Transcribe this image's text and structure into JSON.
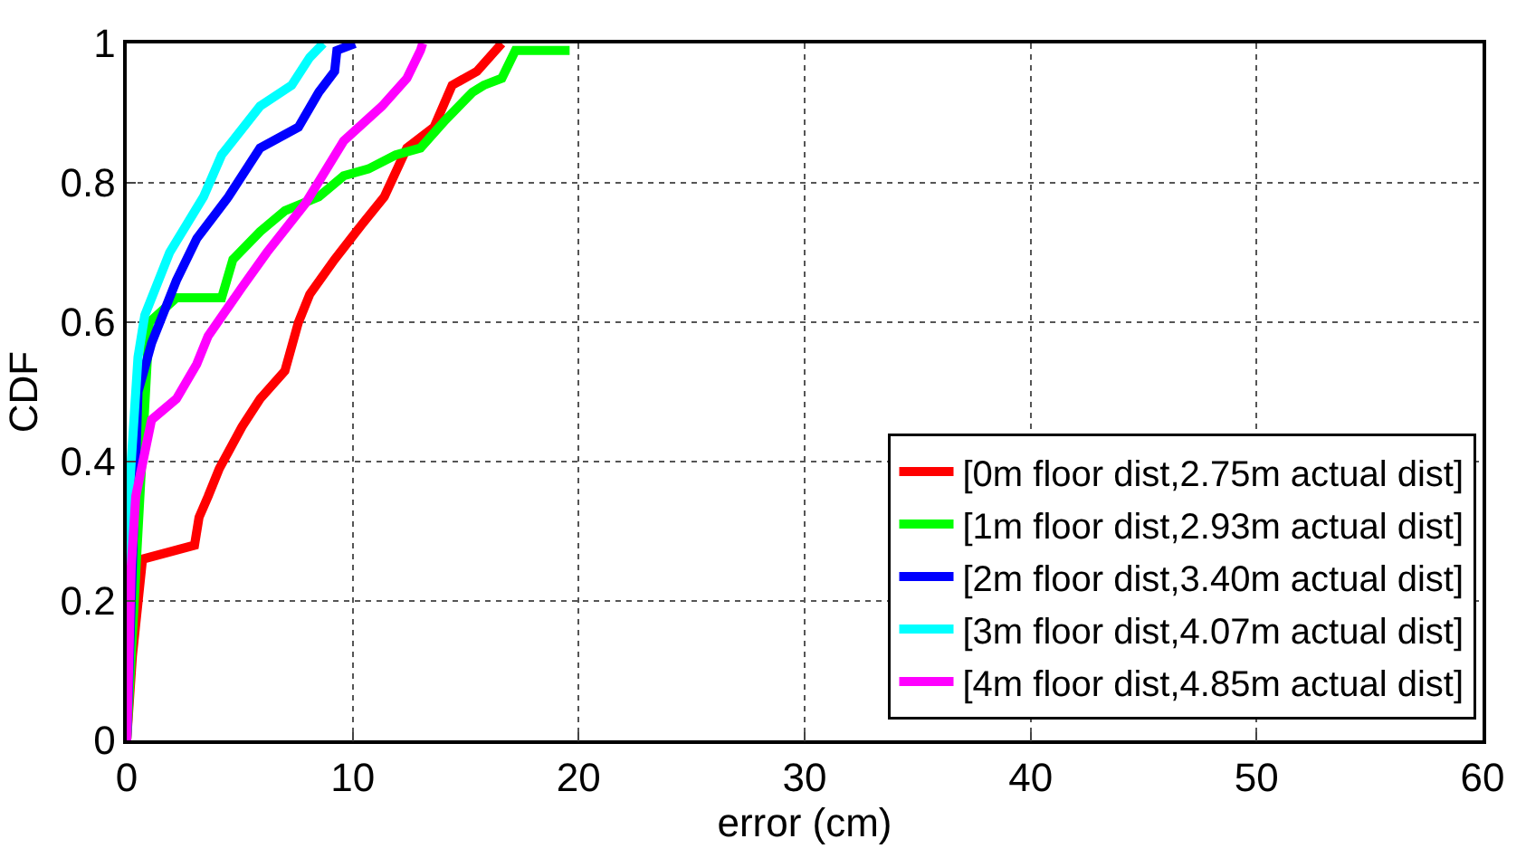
{
  "chart_data": {
    "type": "line",
    "xlabel": "error (cm)",
    "ylabel": "CDF",
    "xlim": [
      0,
      60
    ],
    "xticks": [
      0,
      10,
      20,
      30,
      40,
      50,
      60
    ],
    "ylim": [
      0,
      1
    ],
    "yticks": [
      0,
      0.2,
      0.4,
      0.6,
      0.8,
      1
    ],
    "grid": true,
    "legend": "bottom right",
    "line_style": "solid",
    "marker": "none",
    "series": [
      {
        "name": "[0m floor dist,2.75m actual dist]",
        "color": "#ff0000",
        "x": [
          0,
          0.25,
          0.7,
          3.0,
          3.2,
          3.6,
          4.1,
          5.1,
          5.9,
          7.0,
          7.6,
          8.1,
          9.2,
          10.4,
          11.4,
          12.4,
          13.6,
          14.4,
          15.5,
          16.6
        ],
        "values": [
          0,
          0.12,
          0.26,
          0.28,
          0.32,
          0.35,
          0.39,
          0.45,
          0.49,
          0.53,
          0.6,
          0.64,
          0.69,
          0.74,
          0.78,
          0.85,
          0.88,
          0.94,
          0.96,
          1
        ]
      },
      {
        "name": "[1m floor dist,2.93m actual dist]",
        "color": "#00ff00",
        "x": [
          0,
          1.0,
          2.2,
          4.2,
          4.7,
          5.9,
          7.0,
          8.5,
          9.6,
          10.7,
          11.9,
          13.0,
          14.1,
          15.3,
          15.8,
          16.6,
          17.2,
          19.6
        ],
        "values": [
          0,
          0.6,
          0.635,
          0.635,
          0.69,
          0.73,
          0.76,
          0.78,
          0.81,
          0.82,
          0.84,
          0.85,
          0.89,
          0.93,
          0.94,
          0.95,
          0.99,
          0.99
        ]
      },
      {
        "name": "[2m floor dist,3.40m actual dist]",
        "color": "#0000ff",
        "x": [
          0,
          0.5,
          1.1,
          2.2,
          3.1,
          4.5,
          5.9,
          7.6,
          8.5,
          9.2,
          9.3,
          10.1
        ],
        "values": [
          0,
          0.5,
          0.57,
          0.66,
          0.72,
          0.78,
          0.85,
          0.88,
          0.93,
          0.96,
          0.99,
          1
        ]
      },
      {
        "name": "[3m floor dist,4.07m actual dist]",
        "color": "#00ffff",
        "x": [
          0,
          0.1,
          0.5,
          0.8,
          1.9,
          3.4,
          4.2,
          5.9,
          7.3,
          8.1,
          8.7
        ],
        "values": [
          0,
          0.35,
          0.55,
          0.61,
          0.7,
          0.78,
          0.84,
          0.91,
          0.94,
          0.98,
          1
        ]
      },
      {
        "name": "[4m floor dist,4.85m actual dist]",
        "color": "#ff00ff",
        "x": [
          0,
          0.2,
          0.4,
          1.1,
          2.2,
          3.1,
          3.6,
          5.1,
          6.2,
          7.9,
          9.6,
          11.3,
          12.4,
          13.0,
          13.1
        ],
        "values": [
          0,
          0.25,
          0.35,
          0.46,
          0.49,
          0.54,
          0.58,
          0.65,
          0.7,
          0.77,
          0.86,
          0.91,
          0.95,
          0.99,
          1
        ]
      }
    ]
  }
}
